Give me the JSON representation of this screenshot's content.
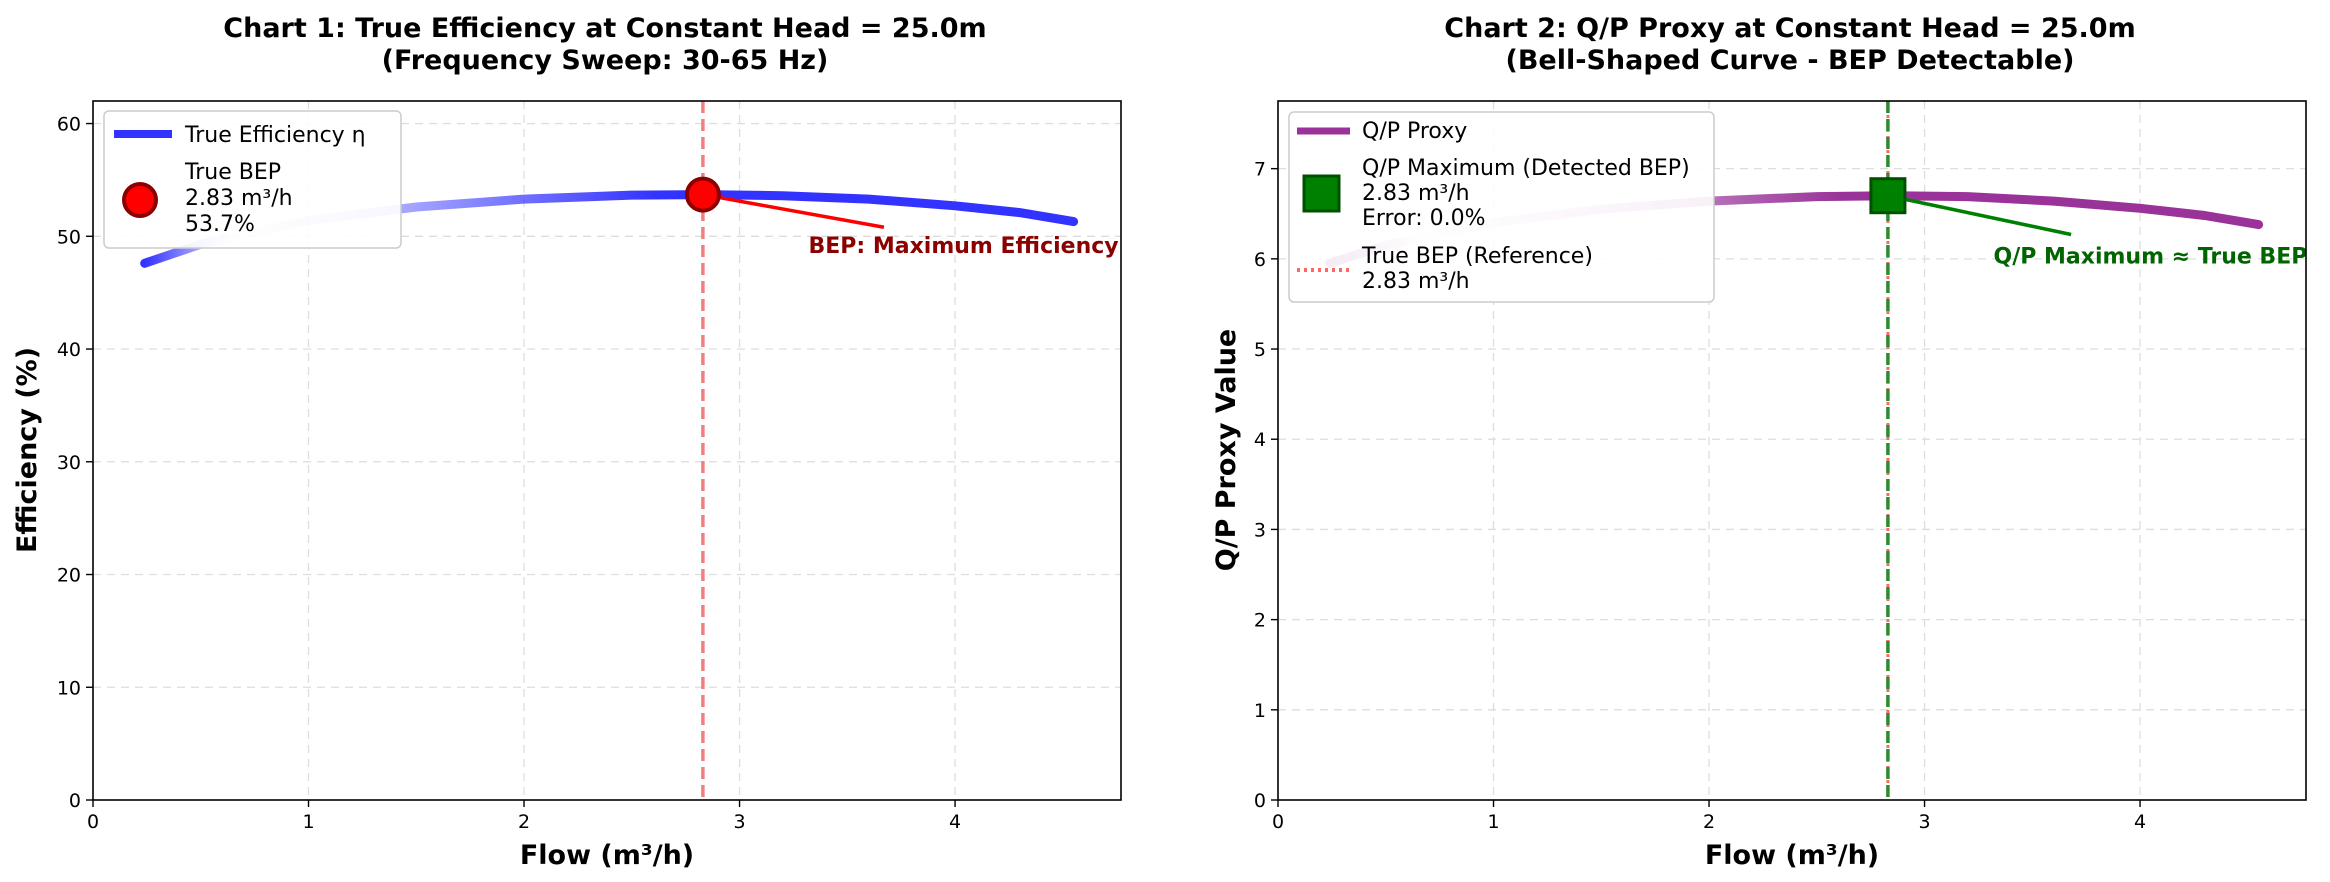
{
  "chart_data": [
    {
      "type": "line",
      "title_line1": "Chart 1: True Efficiency at Constant Head = 25.0m",
      "title_line2": "(Frequency Sweep: 30-65 Hz)",
      "xlabel": "Flow (m³/h)",
      "ylabel": "Efficiency (%)",
      "xlim": [
        0,
        4.77
      ],
      "ylim": [
        0,
        62
      ],
      "xticks": [
        "0",
        "1",
        "2",
        "3",
        "4"
      ],
      "yticks": [
        "0",
        "10",
        "20",
        "30",
        "40",
        "50",
        "60"
      ],
      "grid": true,
      "legend_position": "upper-left",
      "series": [
        {
          "name": "True Efficiency η",
          "color": "#3333ff",
          "style": "gradient-solid",
          "x": [
            0.24,
            0.5,
            1.0,
            1.5,
            2.0,
            2.5,
            2.83,
            3.2,
            3.6,
            4.0,
            4.3,
            4.55
          ],
          "y": [
            47.6,
            49.3,
            51.4,
            52.6,
            53.3,
            53.65,
            53.7,
            53.6,
            53.3,
            52.7,
            52.1,
            51.3
          ]
        }
      ],
      "points": [
        {
          "name": "True BEP",
          "legend_lines": [
            "True BEP",
            "2.83 m³/h",
            "53.7%"
          ],
          "x": 2.83,
          "y": 53.7,
          "color": "#ff0000",
          "edge_color": "#8b0000",
          "marker": "circle"
        }
      ],
      "vlines": [
        {
          "x": 2.83,
          "color": "#f08080",
          "style": "dashed"
        }
      ],
      "annotation": {
        "text": "BEP: Maximum Efficiency",
        "from": [
          2.83,
          53.7
        ],
        "text_at": [
          3.32,
          48.5
        ],
        "arrow_end": [
          3.67,
          50.8
        ],
        "color": "#8b0000",
        "arrow_color": "#ff0000"
      }
    },
    {
      "type": "line",
      "title_line1": "Chart 2: Q/P Proxy at Constant Head = 25.0m",
      "title_line2": "(Bell-Shaped Curve - BEP Detectable)",
      "xlabel": "Flow (m³/h)",
      "ylabel": "Q/P Proxy Value",
      "xlim": [
        0,
        4.77
      ],
      "ylim": [
        0,
        7.75
      ],
      "xticks": [
        "0",
        "1",
        "2",
        "3",
        "4"
      ],
      "yticks": [
        "0",
        "1",
        "2",
        "3",
        "4",
        "5",
        "6",
        "7"
      ],
      "grid": true,
      "legend_position": "upper-left",
      "series": [
        {
          "name": "Q/P Proxy",
          "color": "#993399",
          "style": "gradient-solid",
          "x": [
            0.24,
            0.5,
            1.0,
            1.5,
            2.0,
            2.5,
            2.83,
            3.2,
            3.6,
            4.0,
            4.3,
            4.55
          ],
          "y": [
            5.95,
            6.15,
            6.4,
            6.55,
            6.64,
            6.69,
            6.7,
            6.69,
            6.64,
            6.56,
            6.48,
            6.38
          ]
        }
      ],
      "points": [
        {
          "name": "Q/P Maximum (Detected BEP)",
          "legend_lines": [
            "Q/P Maximum (Detected BEP)",
            "2.83 m³/h",
            "Error: 0.0%"
          ],
          "x": 2.83,
          "y": 6.7,
          "color": "#008000",
          "edge_color": "#005000",
          "marker": "square"
        }
      ],
      "vlines": [
        {
          "x": 2.83,
          "color": "#ff6666",
          "style": "dotted",
          "legend_lines": [
            "True BEP (Reference)",
            "2.83 m³/h"
          ]
        },
        {
          "x": 2.83,
          "color": "#2e8b2e",
          "style": "dashed"
        }
      ],
      "annotation": {
        "text": "Q/P Maximum ≈ True BEP",
        "from": [
          2.83,
          6.7
        ],
        "text_at": [
          3.32,
          5.95
        ],
        "arrow_end": [
          3.68,
          6.27
        ],
        "color": "#006400",
        "arrow_color": "#008000"
      }
    }
  ]
}
